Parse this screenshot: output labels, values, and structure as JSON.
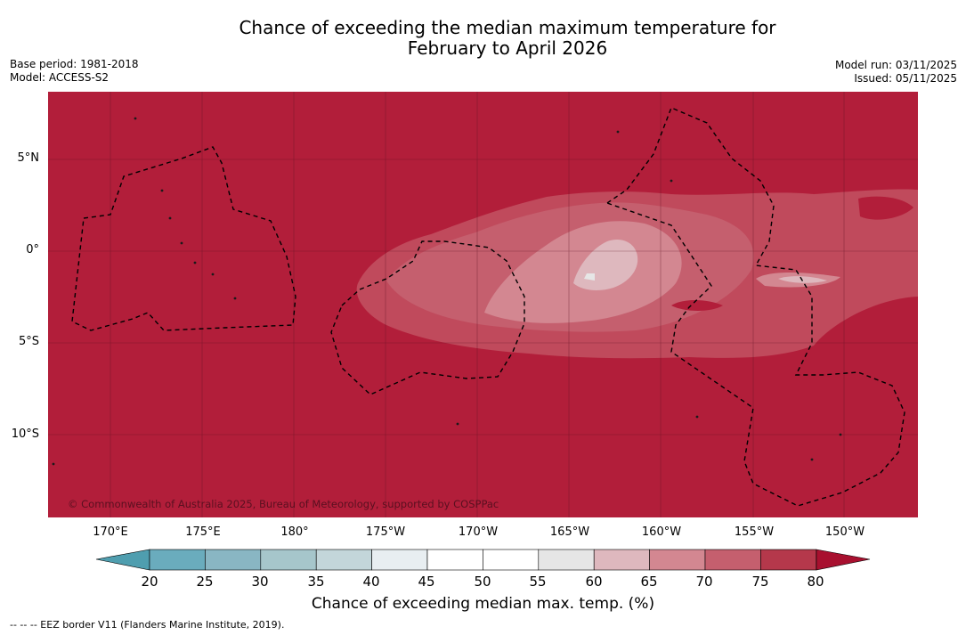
{
  "title": {
    "line1": "Chance of exceeding the median maximum temperature for",
    "line2": "February to April 2026"
  },
  "meta_left": {
    "base_period": "Base period: 1981-2018",
    "model": "Model: ACCESS-S2"
  },
  "meta_right": {
    "model_run": "Model run: 03/11/2025",
    "issued": "Issued: 05/11/2025"
  },
  "map": {
    "background_color": "#b21e3a",
    "copyright": "© Commonwealth of Australia 2025, Bureau of Meteorology, supported by COSPPac",
    "lat_labels": [
      "5°N",
      "0°",
      "5°S",
      "10°S"
    ],
    "lon_labels": [
      "170°E",
      "175°E",
      "180°",
      "175°W",
      "170°W",
      "165°W",
      "160°W",
      "155°W",
      "150°W"
    ],
    "gridlines": true
  },
  "colorbar": {
    "ticks": [
      "20",
      "25",
      "30",
      "35",
      "40",
      "45",
      "50",
      "55",
      "60",
      "65",
      "70",
      "75",
      "80"
    ],
    "colors": [
      "#6aacbd",
      "#89b6c3",
      "#a6c6cb",
      "#c3d6da",
      "#e8eef1",
      "#ffffff",
      "#ffffff",
      "#e6e6e6",
      "#deb8be",
      "#d38791",
      "#c55f6e",
      "#b5384b"
    ],
    "low_extend_color": "#4f9eaf",
    "high_extend_color": "#a8102f",
    "label": "Chance of exceeding median max. temp. (%)"
  },
  "footer": {
    "legend_text": "--  --  -- EEZ border V11 (Flanders Marine Institute, 2019)."
  }
}
